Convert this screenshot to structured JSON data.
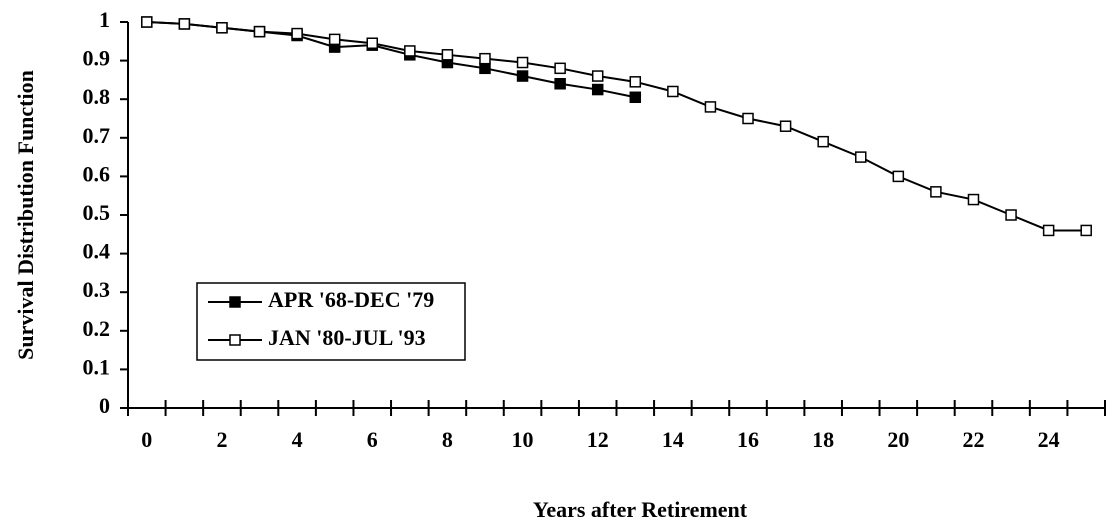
{
  "chart_data": {
    "type": "line",
    "xlabel": "Years after Retirement",
    "ylabel": "Survival Distribution Function",
    "categories": [
      0,
      null,
      2,
      null,
      4,
      null,
      6,
      null,
      8,
      null,
      10,
      null,
      12,
      null,
      14,
      null,
      16,
      null,
      18,
      null,
      20,
      null,
      22,
      null,
      24,
      null
    ],
    "series": [
      {
        "name": "APR '68-DEC '79",
        "color": "#000000",
        "marker_fill": "#000000",
        "values": [
          1,
          0.995,
          0.985,
          0.975,
          0.965,
          0.935,
          0.94,
          0.915,
          0.895,
          0.88,
          0.86,
          0.84,
          0.825,
          0.805,
          null,
          null,
          null,
          null,
          null,
          null,
          null,
          null,
          null,
          null,
          null,
          null
        ]
      },
      {
        "name": "JAN '80-JUL '93",
        "color": "#000000",
        "marker_fill": "#ffffff",
        "values": [
          1,
          0.995,
          0.985,
          0.975,
          0.97,
          0.955,
          0.945,
          0.925,
          0.915,
          0.905,
          0.895,
          0.88,
          0.86,
          0.845,
          0.82,
          0.78,
          0.75,
          0.73,
          0.69,
          0.65,
          0.6,
          0.56,
          0.54,
          0.5,
          0.46,
          0.46
        ]
      }
    ],
    "ylim": [
      0,
      1
    ],
    "yticks": [
      0,
      0.1,
      0.2,
      0.3,
      0.4,
      0.5,
      0.6,
      0.7,
      0.8,
      0.9,
      1
    ],
    "grid": false
  }
}
